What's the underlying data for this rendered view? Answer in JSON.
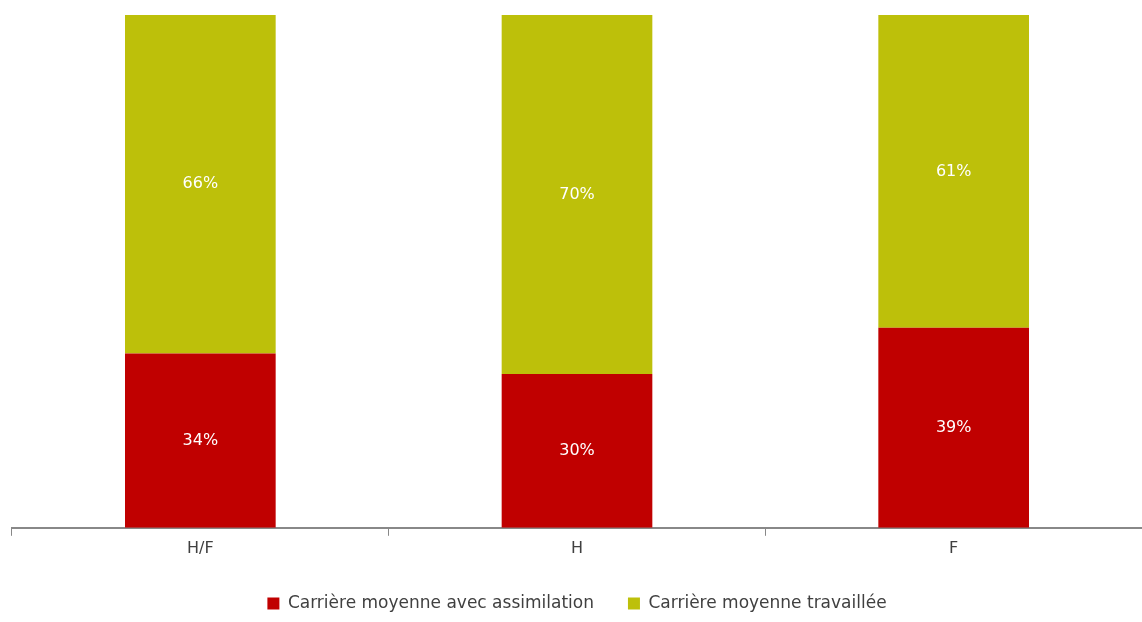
{
  "chart_data": {
    "type": "bar",
    "stacked": true,
    "categories": [
      "H/F",
      "H",
      "F"
    ],
    "series": [
      {
        "name": "Carrière moyenne avec assimilation",
        "color": "#c00000",
        "values": [
          34,
          30,
          39
        ],
        "value_labels": [
          "34%",
          "30%",
          "39%"
        ]
      },
      {
        "name": "Carrière moyenne travaillée",
        "color": "#bdc00a",
        "values": [
          66,
          70,
          61
        ],
        "value_labels": [
          "66%",
          "70%",
          "61%"
        ]
      }
    ],
    "ylim": [
      0,
      100
    ],
    "tick_labels": "x",
    "grid": false,
    "legend": "bottom"
  }
}
